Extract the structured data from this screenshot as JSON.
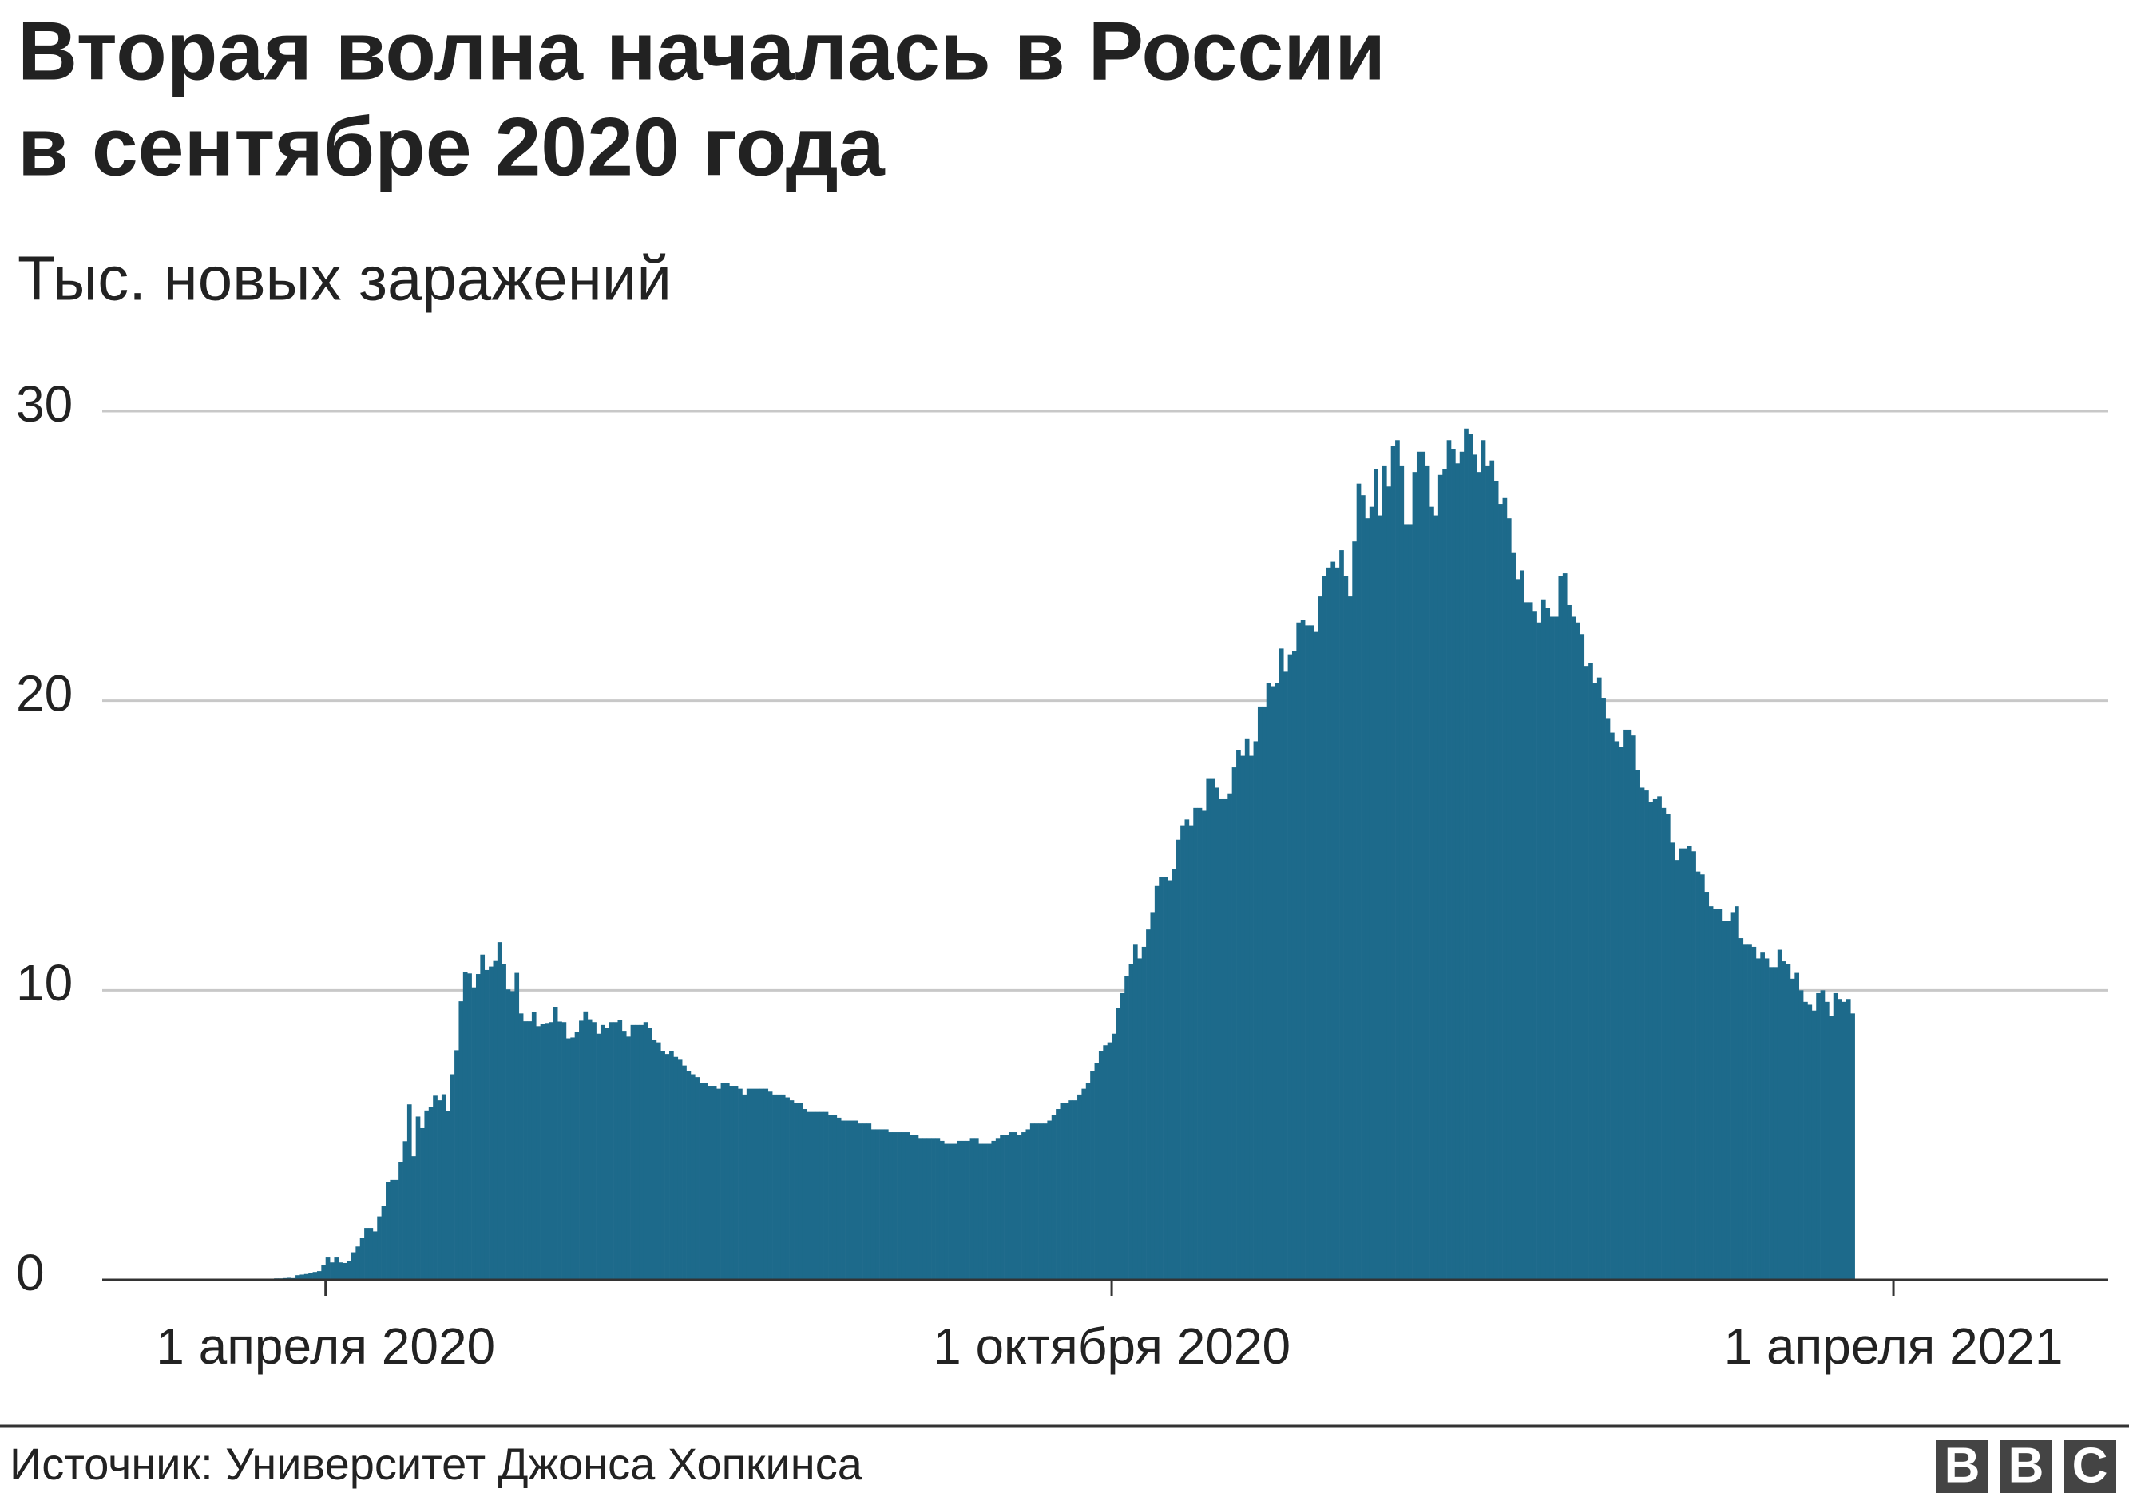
{
  "chart_data": {
    "type": "bar",
    "title": [
      "Вторая волна началась в России",
      "в сентябре 2020 года"
    ],
    "subtitle": "Тыс. новых заражений",
    "color": "#1d6a8b",
    "grid": true,
    "xlim": [
      "2020-02-09",
      "2021-05-21"
    ],
    "xticks": [
      {
        "value": "2020-04-01",
        "label": "1 апреля 2020"
      },
      {
        "value": "2020-10-01",
        "label": "1 октября 2020"
      },
      {
        "value": "2021-04-01",
        "label": "1 апреля 2021"
      }
    ],
    "ylim": [
      0,
      30
    ],
    "yticks": [
      0,
      10,
      20,
      30
    ],
    "x": [
      "2020-03-20",
      "2020-03-21",
      "2020-03-22",
      "2020-03-23",
      "2020-03-24",
      "2020-03-25",
      "2020-03-26",
      "2020-03-27",
      "2020-03-28",
      "2020-03-29",
      "2020-03-30",
      "2020-03-31",
      "2020-04-01",
      "2020-04-02",
      "2020-04-03",
      "2020-04-04",
      "2020-04-05",
      "2020-04-06",
      "2020-04-07",
      "2020-04-08",
      "2020-04-09",
      "2020-04-10",
      "2020-04-11",
      "2020-04-12",
      "2020-04-13",
      "2020-04-14",
      "2020-04-15",
      "2020-04-16",
      "2020-04-17",
      "2020-04-18",
      "2020-04-19",
      "2020-04-20",
      "2020-04-21",
      "2020-04-22",
      "2020-04-23",
      "2020-04-24",
      "2020-04-25",
      "2020-04-26",
      "2020-04-27",
      "2020-04-28",
      "2020-04-29",
      "2020-04-30",
      "2020-05-01",
      "2020-05-02",
      "2020-05-03",
      "2020-05-04",
      "2020-05-05",
      "2020-05-06",
      "2020-05-07",
      "2020-05-08",
      "2020-05-09",
      "2020-05-10",
      "2020-05-11",
      "2020-05-12",
      "2020-05-13",
      "2020-05-14",
      "2020-05-15",
      "2020-05-16",
      "2020-05-17",
      "2020-05-18",
      "2020-05-19",
      "2020-05-20",
      "2020-05-21",
      "2020-05-22",
      "2020-05-23",
      "2020-05-24",
      "2020-05-25",
      "2020-05-26",
      "2020-05-27",
      "2020-05-28",
      "2020-05-29",
      "2020-05-30",
      "2020-05-31",
      "2020-06-01",
      "2020-06-02",
      "2020-06-03",
      "2020-06-04",
      "2020-06-05",
      "2020-06-06",
      "2020-06-07",
      "2020-06-08",
      "2020-06-09",
      "2020-06-10",
      "2020-06-11",
      "2020-06-12",
      "2020-06-13",
      "2020-06-14",
      "2020-06-15",
      "2020-06-16",
      "2020-06-17",
      "2020-06-18",
      "2020-06-19",
      "2020-06-20",
      "2020-06-21",
      "2020-06-22",
      "2020-06-23",
      "2020-06-24",
      "2020-06-25",
      "2020-06-26",
      "2020-06-27",
      "2020-06-28",
      "2020-06-29",
      "2020-06-30",
      "2020-07-01",
      "2020-07-02",
      "2020-07-03",
      "2020-07-04",
      "2020-07-05",
      "2020-07-06",
      "2020-07-07",
      "2020-07-08",
      "2020-07-09",
      "2020-07-10",
      "2020-07-11",
      "2020-07-12",
      "2020-07-13",
      "2020-07-14",
      "2020-07-15",
      "2020-07-16",
      "2020-07-17",
      "2020-07-18",
      "2020-07-19",
      "2020-07-20",
      "2020-07-21",
      "2020-07-22",
      "2020-07-23",
      "2020-07-24",
      "2020-07-25",
      "2020-07-26",
      "2020-07-27",
      "2020-07-28",
      "2020-07-29",
      "2020-07-30",
      "2020-07-31",
      "2020-08-01",
      "2020-08-02",
      "2020-08-03",
      "2020-08-04",
      "2020-08-05",
      "2020-08-06",
      "2020-08-07",
      "2020-08-08",
      "2020-08-09",
      "2020-08-10",
      "2020-08-11",
      "2020-08-12",
      "2020-08-13",
      "2020-08-14",
      "2020-08-15",
      "2020-08-16",
      "2020-08-17",
      "2020-08-18",
      "2020-08-19",
      "2020-08-20",
      "2020-08-21",
      "2020-08-22",
      "2020-08-23",
      "2020-08-24",
      "2020-08-25",
      "2020-08-26",
      "2020-08-27",
      "2020-08-28",
      "2020-08-29",
      "2020-08-30",
      "2020-08-31",
      "2020-09-01",
      "2020-09-02",
      "2020-09-03",
      "2020-09-04",
      "2020-09-05",
      "2020-09-06",
      "2020-09-07",
      "2020-09-08",
      "2020-09-09",
      "2020-09-10",
      "2020-09-11",
      "2020-09-12",
      "2020-09-13",
      "2020-09-14",
      "2020-09-15",
      "2020-09-16",
      "2020-09-17",
      "2020-09-18",
      "2020-09-19",
      "2020-09-20",
      "2020-09-21",
      "2020-09-22",
      "2020-09-23",
      "2020-09-24",
      "2020-09-25",
      "2020-09-26",
      "2020-09-27",
      "2020-09-28",
      "2020-09-29",
      "2020-09-30",
      "2020-10-01",
      "2020-10-02",
      "2020-10-03",
      "2020-10-04",
      "2020-10-05",
      "2020-10-06",
      "2020-10-07",
      "2020-10-08",
      "2020-10-09",
      "2020-10-10",
      "2020-10-11",
      "2020-10-12",
      "2020-10-13",
      "2020-10-14",
      "2020-10-15",
      "2020-10-16",
      "2020-10-17",
      "2020-10-18",
      "2020-10-19",
      "2020-10-20",
      "2020-10-21",
      "2020-10-22",
      "2020-10-23",
      "2020-10-24",
      "2020-10-25",
      "2020-10-26",
      "2020-10-27",
      "2020-10-28",
      "2020-10-29",
      "2020-10-30",
      "2020-10-31",
      "2020-11-01",
      "2020-11-02",
      "2020-11-03",
      "2020-11-04",
      "2020-11-05",
      "2020-11-06",
      "2020-11-07",
      "2020-11-08",
      "2020-11-09",
      "2020-11-10",
      "2020-11-11",
      "2020-11-12",
      "2020-11-13",
      "2020-11-14",
      "2020-11-15",
      "2020-11-16",
      "2020-11-17",
      "2020-11-18",
      "2020-11-19",
      "2020-11-20",
      "2020-11-21",
      "2020-11-22",
      "2020-11-23",
      "2020-11-24",
      "2020-11-25",
      "2020-11-26",
      "2020-11-27",
      "2020-11-28",
      "2020-11-29",
      "2020-11-30",
      "2020-12-01",
      "2020-12-02",
      "2020-12-03",
      "2020-12-04",
      "2020-12-05",
      "2020-12-06",
      "2020-12-07",
      "2020-12-08",
      "2020-12-09",
      "2020-12-10",
      "2020-12-11",
      "2020-12-12",
      "2020-12-13",
      "2020-12-14",
      "2020-12-15",
      "2020-12-16",
      "2020-12-17",
      "2020-12-18",
      "2020-12-19",
      "2020-12-20",
      "2020-12-21",
      "2020-12-22",
      "2020-12-23",
      "2020-12-24",
      "2020-12-25",
      "2020-12-26",
      "2020-12-27",
      "2020-12-28",
      "2020-12-29",
      "2020-12-30",
      "2020-12-31",
      "2021-01-01",
      "2021-01-02",
      "2021-01-03",
      "2021-01-04",
      "2021-01-05",
      "2021-01-06",
      "2021-01-07",
      "2021-01-08",
      "2021-01-09",
      "2021-01-10",
      "2021-01-11",
      "2021-01-12",
      "2021-01-13",
      "2021-01-14",
      "2021-01-15",
      "2021-01-16",
      "2021-01-17",
      "2021-01-18",
      "2021-01-19",
      "2021-01-20",
      "2021-01-21",
      "2021-01-22",
      "2021-01-23",
      "2021-01-24",
      "2021-01-25",
      "2021-01-26",
      "2021-01-27",
      "2021-01-28",
      "2021-01-29",
      "2021-01-30",
      "2021-01-31",
      "2021-02-01",
      "2021-02-02",
      "2021-02-03",
      "2021-02-04",
      "2021-02-05",
      "2021-02-06",
      "2021-02-07",
      "2021-02-08",
      "2021-02-09",
      "2021-02-10",
      "2021-02-11",
      "2021-02-12",
      "2021-02-13",
      "2021-02-14",
      "2021-02-15",
      "2021-02-16",
      "2021-02-17",
      "2021-02-18",
      "2021-02-19",
      "2021-02-20",
      "2021-02-21",
      "2021-02-22",
      "2021-02-23",
      "2021-02-24",
      "2021-02-25",
      "2021-02-26",
      "2021-02-27",
      "2021-02-28",
      "2021-03-01",
      "2021-03-02",
      "2021-03-03",
      "2021-03-04",
      "2021-03-05",
      "2021-03-06",
      "2021-03-07",
      "2021-03-08",
      "2021-03-09",
      "2021-03-10",
      "2021-03-11",
      "2021-03-12",
      "2021-03-13",
      "2021-03-14",
      "2021-03-15",
      "2021-03-16",
      "2021-03-17",
      "2021-03-18",
      "2021-03-19",
      "2021-03-20",
      "2021-03-21",
      "2021-03-22"
    ],
    "values": [
      0.05,
      0.05,
      0.06,
      0.07,
      0.06,
      0.16,
      0.18,
      0.2,
      0.23,
      0.27,
      0.3,
      0.5,
      0.77,
      0.6,
      0.77,
      0.6,
      0.58,
      0.66,
      0.95,
      1.15,
      1.46,
      1.79,
      1.79,
      1.67,
      2.19,
      2.56,
      3.39,
      3.45,
      3.45,
      4.07,
      4.79,
      6.06,
      4.27,
      5.64,
      5.24,
      5.85,
      5.97,
      6.36,
      6.2,
      6.41,
      5.84,
      7.1,
      7.93,
      9.62,
      10.63,
      10.58,
      10.1,
      10.56,
      11.23,
      10.7,
      10.82,
      11.01,
      11.66,
      10.9,
      10.03,
      9.97,
      10.6,
      9.2,
      8.93,
      8.93,
      9.26,
      8.76,
      8.85,
      8.87,
      8.9,
      9.43,
      8.92,
      8.9,
      8.34,
      8.37,
      8.57,
      8.95,
      9.27,
      9.0,
      8.9,
      8.5,
      8.8,
      8.7,
      8.9,
      8.9,
      8.98,
      8.6,
      8.4,
      8.8,
      8.8,
      8.8,
      8.9,
      8.7,
      8.3,
      8.2,
      7.9,
      7.8,
      7.9,
      7.7,
      7.6,
      7.4,
      7.2,
      7.1,
      7.0,
      6.8,
      6.8,
      6.7,
      6.7,
      6.6,
      6.8,
      6.8,
      6.7,
      6.7,
      6.6,
      6.4,
      6.6,
      6.6,
      6.6,
      6.6,
      6.6,
      6.5,
      6.4,
      6.4,
      6.4,
      6.3,
      6.2,
      6.1,
      6.1,
      5.9,
      5.8,
      5.8,
      5.8,
      5.8,
      5.8,
      5.7,
      5.7,
      5.6,
      5.5,
      5.5,
      5.5,
      5.5,
      5.4,
      5.4,
      5.4,
      5.2,
      5.2,
      5.2,
      5.2,
      5.1,
      5.1,
      5.1,
      5.1,
      5.1,
      5.0,
      5.0,
      4.9,
      4.9,
      4.9,
      4.9,
      4.9,
      4.8,
      4.7,
      4.7,
      4.7,
      4.8,
      4.8,
      4.8,
      4.9,
      4.9,
      4.7,
      4.7,
      4.7,
      4.8,
      4.9,
      5.0,
      5.0,
      5.1,
      5.1,
      5.0,
      5.1,
      5.2,
      5.4,
      5.4,
      5.4,
      5.4,
      5.5,
      5.7,
      5.9,
      6.1,
      6.1,
      6.2,
      6.2,
      6.4,
      6.6,
      6.8,
      7.2,
      7.5,
      7.9,
      8.1,
      8.2,
      8.5,
      9.4,
      9.9,
      10.5,
      10.9,
      11.6,
      11.1,
      11.5,
      12.1,
      12.7,
      13.6,
      13.9,
      13.9,
      13.8,
      14.2,
      15.2,
      15.7,
      15.9,
      15.7,
      16.3,
      16.3,
      16.2,
      17.3,
      17.3,
      17.0,
      16.6,
      16.6,
      16.8,
      17.7,
      18.3,
      18.1,
      18.7,
      18.1,
      18.6,
      19.8,
      19.8,
      20.6,
      20.5,
      20.6,
      21.8,
      21.0,
      21.6,
      21.7,
      22.7,
      22.8,
      22.6,
      22.6,
      22.4,
      23.6,
      24.3,
      24.6,
      24.8,
      24.6,
      25.2,
      24.3,
      23.6,
      25.5,
      27.5,
      27.1,
      26.3,
      26.7,
      28.0,
      26.4,
      28.1,
      27.4,
      28.8,
      29.0,
      28.1,
      26.1,
      26.1,
      27.9,
      28.6,
      28.6,
      28.1,
      26.7,
      26.4,
      27.8,
      28.0,
      29.0,
      28.7,
      28.2,
      28.6,
      29.4,
      29.2,
      28.5,
      27.9,
      29.0,
      28.1,
      28.3,
      27.6,
      26.8,
      27.0,
      26.3,
      25.1,
      24.2,
      24.5,
      23.4,
      23.4,
      23.1,
      22.7,
      23.5,
      23.2,
      22.9,
      22.9,
      24.3,
      24.4,
      23.3,
      22.9,
      22.7,
      22.3,
      21.2,
      21.3,
      20.6,
      20.8,
      20.1,
      19.4,
      18.9,
      18.6,
      18.4,
      19.0,
      19.0,
      18.8,
      17.6,
      17.0,
      16.9,
      16.5,
      16.6,
      16.7,
      16.3,
      16.1,
      15.1,
      14.5,
      14.9,
      14.9,
      15.0,
      14.8,
      14.1,
      14.0,
      13.4,
      12.9,
      12.8,
      12.8,
      12.4,
      12.4,
      12.7,
      12.9,
      11.8,
      11.6,
      11.6,
      11.5,
      11.1,
      11.3,
      11.1,
      10.8,
      10.8,
      11.4,
      11.0,
      10.9,
      10.4,
      10.6,
      10.0,
      9.6,
      9.5,
      9.3,
      9.9,
      10.0,
      9.6,
      9.1,
      9.9,
      9.7,
      9.6,
      9.7,
      9.2
    ]
  },
  "footer": {
    "source": "Источник: Университет Джонса Хопкинса",
    "logo": [
      "B",
      "B",
      "C"
    ]
  }
}
